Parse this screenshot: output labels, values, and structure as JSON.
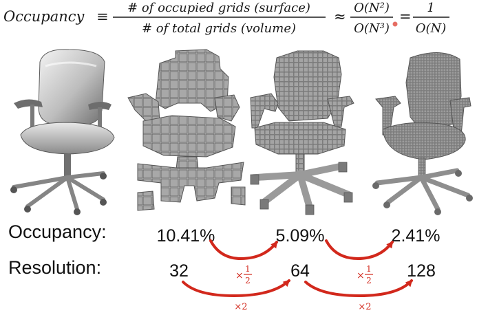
{
  "formula": {
    "lhs": "Occupancy",
    "equiv": "≡",
    "numerator": "# of occupied grids (surface)",
    "denominator": "# of total grids (volume)",
    "approx": "≈",
    "big_o_num": "O(N²)",
    "big_o_den": "O(N³)",
    "eq": "=",
    "one": "1",
    "big_o_last": "O(N)"
  },
  "rows": {
    "occupancy_label": "Occupancy:",
    "occupancy_values": [
      "10.41%",
      "5.09%",
      "2.41%"
    ],
    "resolution_label": "Resolution:",
    "resolution_values": [
      "32",
      "64",
      "128"
    ]
  },
  "arrows": {
    "times_half_prefix": "×",
    "half_num": "1",
    "half_den": "2",
    "times_two": "×2"
  },
  "colors": {
    "arrow": "#d2281c",
    "chair_light": "#d9d9d9",
    "chair_mid": "#9a9a9a",
    "chair_dark": "#4a4a4a"
  },
  "icons": [
    "office-chair-mesh-icon",
    "voxel-chair-32-icon",
    "voxel-chair-64-icon",
    "voxel-chair-128-icon"
  ]
}
